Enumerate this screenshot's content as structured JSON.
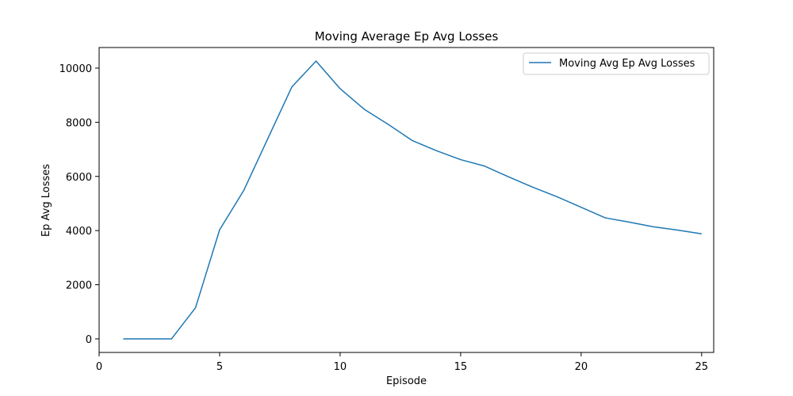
{
  "chart_data": {
    "type": "line",
    "title": "Moving Average Ep Avg Losses",
    "xlabel": "Episode",
    "ylabel": "Ep Avg Losses",
    "xlim": [
      0,
      25.5
    ],
    "ylim": [
      -500,
      10760
    ],
    "xticks": [
      0,
      5,
      10,
      15,
      20,
      25
    ],
    "yticks": [
      0,
      2000,
      4000,
      6000,
      8000,
      10000
    ],
    "legend_position": "upper-right",
    "grid": false,
    "x": [
      1,
      2,
      3,
      4,
      5,
      6,
      7,
      8,
      9,
      10,
      11,
      12,
      13,
      14,
      15,
      16,
      17,
      18,
      19,
      20,
      21,
      22,
      23,
      24,
      25
    ],
    "series": [
      {
        "name": "Moving Avg Ep Avg Losses",
        "color": "#1f77b4",
        "values": [
          0,
          0,
          0,
          1150,
          4030,
          5480,
          7400,
          9310,
          10260,
          9240,
          8480,
          7920,
          7320,
          6950,
          6620,
          6380,
          5980,
          5600,
          5250,
          4860,
          4470,
          4310,
          4140,
          4020,
          3880
        ]
      }
    ]
  }
}
